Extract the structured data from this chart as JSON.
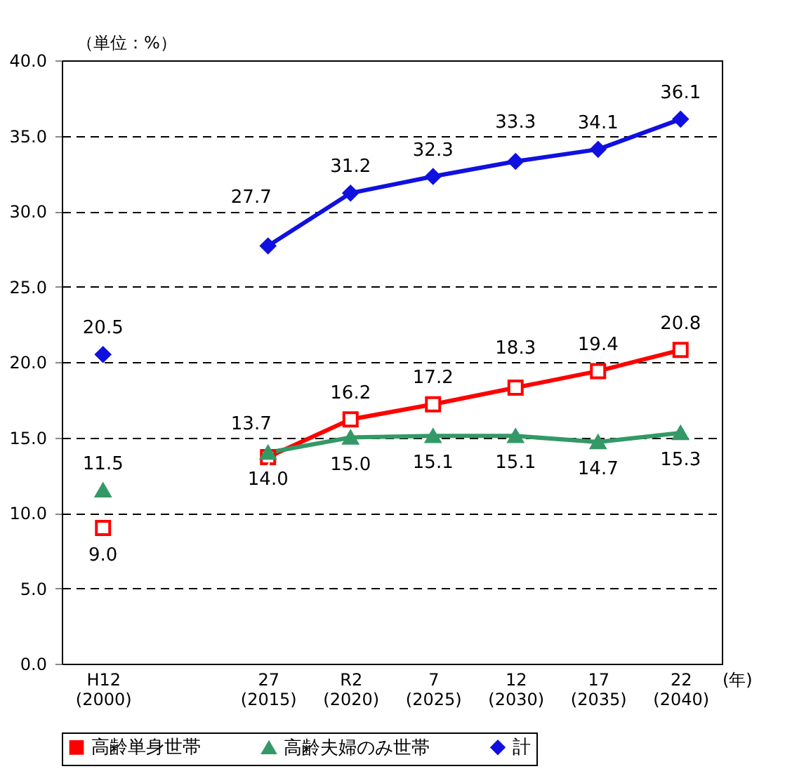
{
  "chart_data": {
    "type": "line",
    "ylabel": "（単位：%）",
    "xlabel": "(年)",
    "categories": [
      "H12\n(2000)",
      null,
      "27\n(2015)",
      "R2\n(2020)",
      "7\n(2025)",
      "12\n(2030)",
      "17\n(2035)",
      "22\n(2040)"
    ],
    "series": [
      {
        "name": "高齢単身世帯",
        "color": "#ff0000",
        "marker": "square",
        "values": [
          9.0,
          null,
          13.7,
          16.2,
          17.2,
          18.3,
          19.4,
          20.8
        ],
        "value_labels": [
          "9.0",
          null,
          "13.7",
          "16.2",
          "17.2",
          "18.3",
          "19.4",
          "20.8"
        ]
      },
      {
        "name": "高齢夫婦のみ世帯",
        "color": "#339966",
        "marker": "triangle",
        "values": [
          11.5,
          null,
          14.0,
          15.0,
          15.1,
          15.1,
          14.7,
          15.3
        ],
        "value_labels": [
          "11.5",
          null,
          "14.0",
          "15.0",
          "15.1",
          "15.1",
          "14.7",
          "15.3"
        ]
      },
      {
        "name": "計",
        "color": "#1010e0",
        "marker": "diamond",
        "values": [
          20.5,
          null,
          27.7,
          31.2,
          32.3,
          33.3,
          34.1,
          36.1
        ],
        "value_labels": [
          "20.5",
          null,
          "27.7",
          "31.2",
          "32.3",
          "33.3",
          "34.1",
          "36.1"
        ]
      }
    ],
    "ylim": [
      0,
      40
    ],
    "yticks": [
      {
        "value": 0,
        "label": "0.0"
      },
      {
        "value": 5,
        "label": "5.0"
      },
      {
        "value": 10,
        "label": "10.0"
      },
      {
        "value": 15,
        "label": "15.0"
      },
      {
        "value": 20,
        "label": "20.0"
      },
      {
        "value": 25,
        "label": "25.0"
      },
      {
        "value": 30,
        "label": "30.0"
      },
      {
        "value": 35,
        "label": "35.0"
      },
      {
        "value": 40,
        "label": "40.0"
      }
    ],
    "grid": "y",
    "line_style": "solid",
    "legend": "bottom"
  }
}
